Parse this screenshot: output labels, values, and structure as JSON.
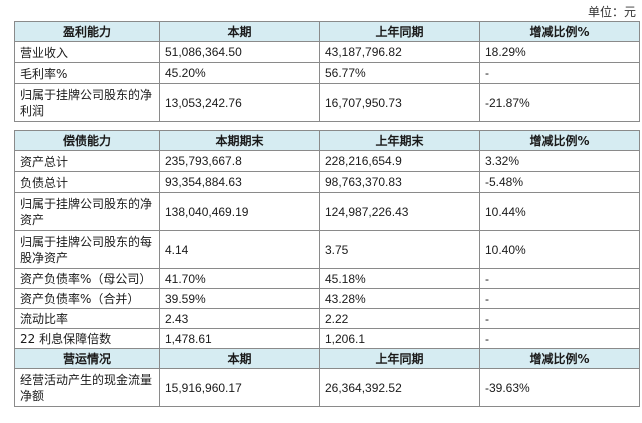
{
  "unit_label": "单位：元",
  "profit": {
    "headers": [
      "盈利能力",
      "本期",
      "上年同期",
      "增减比例%"
    ],
    "rows": [
      [
        "营业收入",
        "51,086,364.50",
        "43,187,796.82",
        "18.29%"
      ],
      [
        "毛利率%",
        "45.20%",
        "56.77%",
        "-"
      ],
      [
        "归属于挂牌公司股东的净利润",
        "13,053,242.76",
        "16,707,950.73",
        "-21.87%"
      ]
    ]
  },
  "solvency": {
    "headers": [
      "偿债能力",
      "本期期末",
      "上年期末",
      "增减比例%"
    ],
    "rows": [
      [
        "资产总计",
        "235,793,667.8",
        "228,216,654.9",
        "3.32%"
      ],
      [
        "负债总计",
        "93,354,884.63",
        "98,763,370.83",
        "-5.48%"
      ],
      [
        "归属于挂牌公司股东的净资产",
        "138,040,469.19",
        "124,987,226.43",
        "10.44%"
      ],
      [
        "归属于挂牌公司股东的每股净资产",
        "4.14",
        "3.75",
        "10.40%"
      ],
      [
        "资产负债率%（母公司）",
        "41.70%",
        "45.18%",
        "-"
      ],
      [
        "资产负债率%（合并）",
        "39.59%",
        "43.28%",
        "-"
      ],
      [
        "流动比率",
        "2.43",
        "2.22",
        "-"
      ],
      [
        "22 利息保障倍数",
        "1,478.61",
        "1,206.1",
        "-"
      ]
    ]
  },
  "operation": {
    "headers": [
      "营运情况",
      "本期",
      "上年同期",
      "增减比例%"
    ],
    "rows": [
      [
        "经营活动产生的现金流量净额",
        "15,916,960.17",
        "26,364,392.52",
        "-39.63%"
      ]
    ]
  }
}
